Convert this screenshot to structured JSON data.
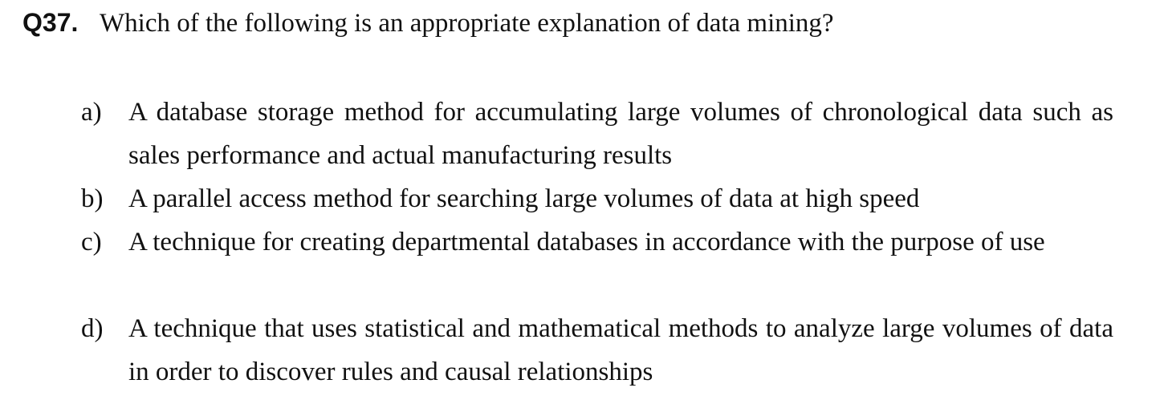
{
  "question": {
    "number": "Q37.",
    "text": "Which of the following is an appropriate explanation of data mining?"
  },
  "options": [
    {
      "letter": "a)",
      "text": "A database storage method for accumulating large volumes of chronological data such as sales performance and actual manufacturing results"
    },
    {
      "letter": "b)",
      "text": "A parallel access method for searching large volumes of data at high speed"
    },
    {
      "letter": "c)",
      "text": "A technique for creating departmental databases in accordance with the purpose of use"
    },
    {
      "letter": "d)",
      "text": "A technique that uses statistical and mathematical methods to analyze large volumes of data in order to discover rules and causal relationships"
    }
  ]
}
